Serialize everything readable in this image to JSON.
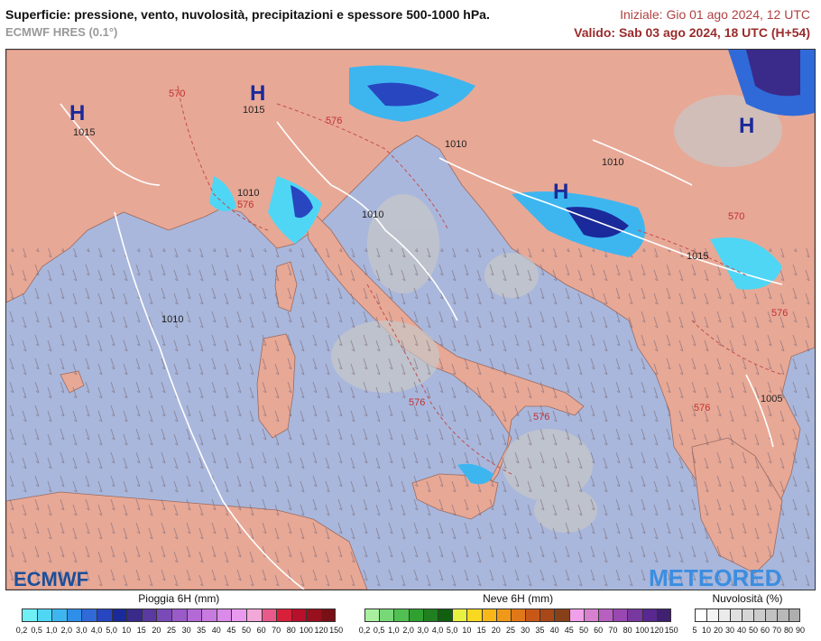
{
  "header": {
    "title": "Superficie: pressione, vento, nuvolosità, precipitazioni e spessore 500-1000 hPa.",
    "model": "ECMWF HRES (0.1°)",
    "init": "Iniziale: Gio 01 ago 2024, 12 UTC",
    "valid": "Valido: Sab 03 ago 2024, 18 UTC (H+54)"
  },
  "map": {
    "highs": [
      "H",
      "H",
      "H",
      "H"
    ],
    "isobars": [
      "1015",
      "1015",
      "1010",
      "1010",
      "1010",
      "1010",
      "1015",
      "1005",
      "1010"
    ],
    "thickness": [
      "570",
      "576",
      "576",
      "576",
      "576",
      "570",
      "576",
      "576"
    ],
    "logo_left": "ECMWF",
    "logo_right": "METEORED"
  },
  "legend": {
    "rain": {
      "title": "Pioggia 6H (mm)",
      "ticks": [
        "0,2",
        "0,5",
        "1,0",
        "2,0",
        "3,0",
        "4,0",
        "5,0",
        "10",
        "15",
        "20",
        "25",
        "30",
        "35",
        "40",
        "45",
        "50",
        "60",
        "70",
        "80",
        "100",
        "120",
        "150"
      ],
      "colors": [
        "#6ff0f5",
        "#4fd6f5",
        "#3db6f0",
        "#2f8fe8",
        "#2f6ad8",
        "#2846c0",
        "#1a2a9a",
        "#3a2a8a",
        "#5a3aa0",
        "#7a4ab8",
        "#9a5ac8",
        "#b46ad6",
        "#c87ae0",
        "#da8ae8",
        "#ea9aee",
        "#f2a8d8",
        "#e85a8a",
        "#d8203a",
        "#b8102a",
        "#98101e",
        "#781016"
      ]
    },
    "snow": {
      "title": "Neve 6H (mm)",
      "ticks": [
        "0,2",
        "0,5",
        "1,0",
        "2,0",
        "3,0",
        "4,0",
        "5,0",
        "10",
        "15",
        "20",
        "25",
        "30",
        "35",
        "40",
        "45",
        "50",
        "60",
        "70",
        "80",
        "100",
        "120",
        "150"
      ],
      "colors": [
        "#a8f0a0",
        "#78d878",
        "#50c050",
        "#30a030",
        "#208020",
        "#106010",
        "#e8f040",
        "#f8d820",
        "#f8b818",
        "#f09818",
        "#e07818",
        "#c85818",
        "#a84818",
        "#884018",
        "#f0a0e8",
        "#d880d0",
        "#b860c0",
        "#9848b0",
        "#7838a0",
        "#582890",
        "#402070"
      ]
    },
    "cloud": {
      "title": "Nuvolosità (%)",
      "ticks": [
        "5",
        "10",
        "20",
        "30",
        "40",
        "50",
        "60",
        "70",
        "80",
        "90"
      ],
      "colors": [
        "#ffffff",
        "#f4f4f4",
        "#ebebeb",
        "#e0e0e0",
        "#d6d6d6",
        "#cccccc",
        "#c2c2c2",
        "#b8b8b8",
        "#aeaeae"
      ]
    }
  }
}
